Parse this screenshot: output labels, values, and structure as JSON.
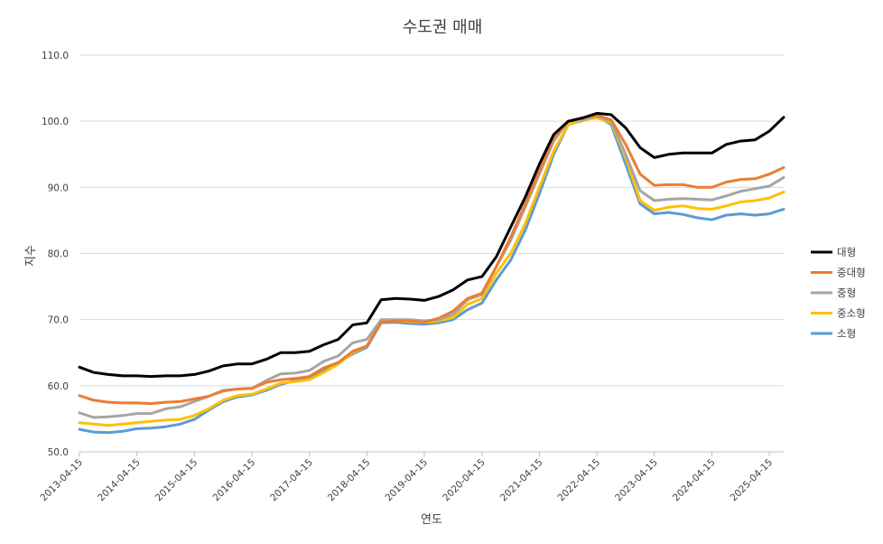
{
  "chart_data": {
    "type": "line",
    "title": "수도권 매매",
    "xlabel": "연도",
    "ylabel": "지수",
    "ylim": [
      50,
      110
    ],
    "yticks": [
      "50.0",
      "60.0",
      "70.0",
      "80.0",
      "90.0",
      "100.0",
      "110.0"
    ],
    "xticks": [
      "2013-04-15",
      "2014-04-15",
      "2015-04-15",
      "2016-04-15",
      "2017-04-15",
      "2018-04-15",
      "2019-04-15",
      "2020-04-15",
      "2021-04-15",
      "2022-04-15",
      "2023-04-15",
      "2024-04-15",
      "2025-04-15"
    ],
    "xrange": [
      "2013-04-15",
      "2025-07-15"
    ],
    "grid": "horizontal",
    "legend_position": "right",
    "x": [
      "2013-04-15",
      "2013-07-15",
      "2013-10-15",
      "2014-01-15",
      "2014-04-15",
      "2014-07-15",
      "2014-10-15",
      "2015-01-15",
      "2015-04-15",
      "2015-07-15",
      "2015-10-15",
      "2016-01-15",
      "2016-04-15",
      "2016-07-15",
      "2016-10-15",
      "2017-01-15",
      "2017-04-15",
      "2017-07-15",
      "2017-10-15",
      "2018-01-15",
      "2018-04-15",
      "2018-07-15",
      "2018-10-15",
      "2019-01-15",
      "2019-04-15",
      "2019-07-15",
      "2019-10-15",
      "2020-01-15",
      "2020-04-15",
      "2020-07-15",
      "2020-10-15",
      "2021-01-15",
      "2021-04-15",
      "2021-07-15",
      "2021-10-15",
      "2022-01-15",
      "2022-04-15",
      "2022-07-15",
      "2022-10-15",
      "2023-01-15",
      "2023-04-15",
      "2023-07-15",
      "2023-10-15",
      "2024-01-15",
      "2024-04-15",
      "2024-07-15",
      "2024-10-15",
      "2025-01-15",
      "2025-04-15",
      "2025-07-15"
    ],
    "series": [
      {
        "name": "대형",
        "color": "#000000",
        "values": [
          62.8,
          62.0,
          61.7,
          61.5,
          61.5,
          61.4,
          61.5,
          61.5,
          61.7,
          62.2,
          63.0,
          63.3,
          63.3,
          64.0,
          65.0,
          65.0,
          65.2,
          66.2,
          67.0,
          69.2,
          69.5,
          73.0,
          73.2,
          73.1,
          72.9,
          73.5,
          74.5,
          76.0,
          76.5,
          79.5,
          84.0,
          88.5,
          93.5,
          98.0,
          100.0,
          100.5,
          101.2,
          101.0,
          99.0,
          96.0,
          94.5,
          95.0,
          95.2,
          95.2,
          95.2,
          96.5,
          97.0,
          97.2,
          98.5,
          100.6
        ]
      },
      {
        "name": "중대형",
        "color": "#ED7D31",
        "values": [
          58.5,
          57.8,
          57.5,
          57.4,
          57.4,
          57.3,
          57.5,
          57.6,
          58.0,
          58.4,
          59.2,
          59.5,
          59.6,
          60.5,
          60.9,
          61.1,
          61.4,
          62.7,
          63.5,
          65.2,
          66.0,
          69.6,
          69.8,
          69.8,
          69.6,
          70.2,
          71.3,
          73.2,
          74.0,
          78.0,
          82.5,
          87.5,
          92.5,
          97.5,
          100.0,
          100.5,
          100.9,
          100.2,
          96.5,
          92.0,
          90.3,
          90.4,
          90.4,
          90.0,
          90.0,
          90.8,
          91.2,
          91.3,
          92.0,
          93.0
        ]
      },
      {
        "name": "중형",
        "color": "#A5A5A5",
        "values": [
          55.9,
          55.2,
          55.3,
          55.5,
          55.8,
          55.8,
          56.5,
          56.8,
          57.6,
          58.4,
          59.3,
          59.5,
          59.6,
          60.8,
          61.8,
          61.9,
          62.3,
          63.7,
          64.5,
          66.5,
          67.0,
          70.0,
          70.0,
          70.0,
          69.8,
          70.0,
          70.8,
          73.0,
          73.8,
          78.0,
          82.0,
          87.0,
          92.0,
          97.0,
          100.0,
          100.3,
          100.8,
          100.0,
          95.0,
          89.5,
          88.0,
          88.2,
          88.3,
          88.2,
          88.1,
          88.7,
          89.4,
          89.8,
          90.2,
          91.5
        ]
      },
      {
        "name": "중소형",
        "color": "#FFC000",
        "values": [
          54.4,
          54.2,
          54.0,
          54.2,
          54.4,
          54.6,
          54.8,
          54.9,
          55.5,
          56.5,
          57.8,
          58.5,
          58.7,
          59.5,
          60.4,
          60.6,
          60.9,
          62.0,
          63.3,
          65.0,
          66.0,
          69.8,
          69.8,
          69.7,
          69.6,
          69.8,
          70.3,
          72.3,
          73.2,
          77.0,
          80.0,
          84.5,
          90.0,
          95.5,
          99.5,
          100.2,
          100.5,
          99.8,
          94.5,
          88.0,
          86.5,
          87.0,
          87.2,
          86.8,
          86.7,
          87.2,
          87.8,
          88.0,
          88.4,
          89.3
        ]
      },
      {
        "name": "소형",
        "color": "#5B9BD5",
        "values": [
          53.4,
          53.0,
          52.9,
          53.1,
          53.5,
          53.6,
          53.8,
          54.2,
          54.9,
          56.3,
          57.6,
          58.3,
          58.6,
          59.3,
          60.2,
          60.8,
          61.0,
          62.3,
          63.5,
          64.8,
          65.8,
          69.5,
          69.6,
          69.4,
          69.3,
          69.5,
          70.0,
          71.5,
          72.5,
          76.0,
          79.0,
          83.5,
          89.0,
          95.0,
          99.5,
          100.1,
          100.8,
          99.5,
          93.5,
          87.5,
          86.0,
          86.2,
          85.9,
          85.4,
          85.1,
          85.8,
          86.0,
          85.8,
          86.0,
          86.7
        ]
      }
    ]
  }
}
